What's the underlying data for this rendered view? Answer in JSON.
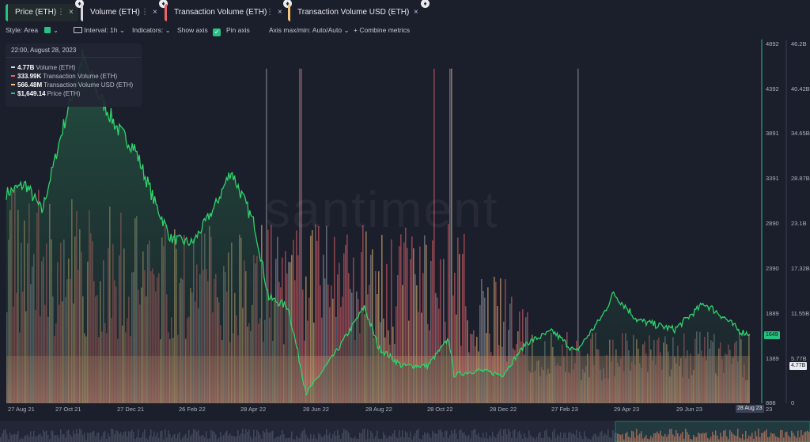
{
  "tabs": [
    {
      "label": "Price (ETH)",
      "color": "#26c281",
      "dots": "⋮",
      "close": "×"
    },
    {
      "label": "Volume (ETH)",
      "color": "#d7d9df",
      "dots": "⋮",
      "close": "×"
    },
    {
      "label": "Transaction Volume (ETH)",
      "color": "#e8656b",
      "dots": "⋮",
      "close": "×"
    },
    {
      "label": "Transaction Volume USD (ETH)",
      "color": "#f4c57a",
      "dots": "⋮",
      "close": "×"
    }
  ],
  "eth_glyph": "♦",
  "toolbar": {
    "style": "Style: Area",
    "interval": "Interval: 1h",
    "indicators": "Indicators:",
    "show_axis": "Show axis",
    "pin_axis": "Pin axis",
    "axis_maxmin": "Axis max/min: Auto/Auto",
    "combine_plus": "+",
    "combine": "Combine metrics",
    "chevron": "⌄",
    "check": "✓"
  },
  "tooltip": {
    "date": "22:00, August 28, 2023",
    "rows": [
      {
        "value": "4.77B",
        "label": "Volume (ETH)",
        "color": "#d7d9df"
      },
      {
        "value": "333.99K",
        "label": "Transaction Volume (ETH)",
        "color": "#e8656b"
      },
      {
        "value": "566.48M",
        "label": "Transaction Volume USD (ETH)",
        "color": "#f4c57a"
      },
      {
        "value": "$1,649.14",
        "label": "Price (ETH)",
        "color": "#26c281"
      }
    ]
  },
  "watermark": "santiment",
  "axes": {
    "price_axis": [
      "4892",
      "4392",
      "3891",
      "3391",
      "2890",
      "2390",
      "1889",
      "1389",
      "888"
    ],
    "volume_axis": [
      "46.2B",
      "40.42B",
      "34.65B",
      "28.87B",
      "23.1B",
      "17.32B",
      "11.55B",
      "5.77B",
      "0"
    ],
    "price_badge": "1649",
    "volume_badge": "4.77B",
    "date_badge": "28 Aug 23",
    "x_labels": [
      "27 Aug 21",
      "27 Oct 21",
      "27 Dec 21",
      "26 Feb 22",
      "28 Apr 22",
      "28 Jun 22",
      "28 Aug 22",
      "28 Oct 22",
      "28 Dec 22",
      "27 Feb 23",
      "29 Apr 23",
      "29 Jun 23"
    ],
    "x_end_label": "23"
  },
  "chart_data": {
    "type": "area",
    "x_range": [
      "2021-08-27",
      "2023-08-28"
    ],
    "series": [
      {
        "name": "Price (ETH)",
        "color": "#26c281",
        "axis": "price",
        "points": [
          [
            "2021-08-27",
            3200
          ],
          [
            "2021-09-15",
            3300
          ],
          [
            "2021-10-01",
            3000
          ],
          [
            "2021-10-20",
            3850
          ],
          [
            "2021-11-10",
            4700
          ],
          [
            "2021-11-25",
            4300
          ],
          [
            "2021-12-15",
            3900
          ],
          [
            "2021-12-31",
            3700
          ],
          [
            "2022-01-20",
            3100
          ],
          [
            "2022-02-05",
            2700
          ],
          [
            "2022-02-26",
            2650
          ],
          [
            "2022-03-20",
            3050
          ],
          [
            "2022-04-05",
            3450
          ],
          [
            "2022-04-28",
            2850
          ],
          [
            "2022-05-12",
            2050
          ],
          [
            "2022-05-31",
            1950
          ],
          [
            "2022-06-18",
            1000
          ],
          [
            "2022-06-28",
            1150
          ],
          [
            "2022-07-20",
            1500
          ],
          [
            "2022-08-14",
            1950
          ],
          [
            "2022-08-28",
            1500
          ],
          [
            "2022-09-20",
            1300
          ],
          [
            "2022-10-15",
            1300
          ],
          [
            "2022-11-05",
            1600
          ],
          [
            "2022-11-10",
            1200
          ],
          [
            "2022-12-05",
            1250
          ],
          [
            "2022-12-28",
            1200
          ],
          [
            "2023-01-20",
            1550
          ],
          [
            "2023-02-15",
            1680
          ],
          [
            "2023-03-10",
            1450
          ],
          [
            "2023-04-05",
            1850
          ],
          [
            "2023-04-16",
            2100
          ],
          [
            "2023-05-10",
            1800
          ],
          [
            "2023-06-15",
            1700
          ],
          [
            "2023-07-14",
            1990
          ],
          [
            "2023-08-01",
            1850
          ],
          [
            "2023-08-18",
            1680
          ],
          [
            "2023-08-28",
            1649
          ]
        ]
      },
      {
        "name": "Volume (ETH)",
        "color": "#d7d9df",
        "axis": "volume"
      },
      {
        "name": "Transaction Volume (ETH)",
        "color": "#e8656b",
        "axis": "volume"
      },
      {
        "name": "Transaction Volume USD (ETH)",
        "color": "#f4c57a",
        "axis": "volume"
      }
    ],
    "price_axis_range": [
      888,
      4892
    ],
    "volume_axis_range": [
      0,
      46200000000
    ],
    "grid": false,
    "legend": "top"
  }
}
